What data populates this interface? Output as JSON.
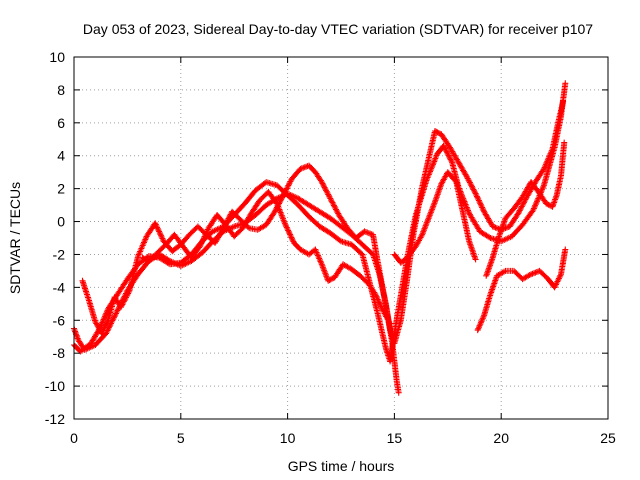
{
  "chart_data": {
    "type": "scatter",
    "title": "Day 053 of 2023, Sidereal Day-to-day VTEC variation (SDTVAR) for receiver p107",
    "xlabel": "GPS time / hours",
    "ylabel": "SDTVAR / TECUs",
    "xlim": [
      0,
      25
    ],
    "ylim": [
      -12,
      10
    ],
    "xticks": [
      0,
      5,
      10,
      15,
      20,
      25
    ],
    "yticks": [
      -12,
      -10,
      -8,
      -6,
      -4,
      -2,
      0,
      2,
      4,
      6,
      8,
      10
    ],
    "xtick_labels": [
      "0",
      "5",
      "10",
      "15",
      "20",
      "25"
    ],
    "ytick_labels": [
      "-12",
      "-10",
      "-8",
      "-6",
      "-4",
      "-2",
      "0",
      "2",
      "4",
      "6",
      "8",
      "10"
    ],
    "grid": true,
    "marker": "plus",
    "color": "#ff0000",
    "series": [
      {
        "points": [
          [
            0.0,
            -6.5
          ],
          [
            0.2,
            -7.2
          ],
          [
            0.5,
            -7.8
          ],
          [
            1.0,
            -7.5
          ],
          [
            1.5,
            -6.8
          ],
          [
            2.0,
            -5.5
          ],
          [
            2.5,
            -4.2
          ],
          [
            3.0,
            -3.2
          ],
          [
            3.5,
            -2.4
          ],
          [
            4.0,
            -2.0
          ],
          [
            4.5,
            -2.4
          ],
          [
            5.0,
            -2.7
          ],
          [
            5.5,
            -2.4
          ],
          [
            6.0,
            -1.9
          ],
          [
            6.5,
            -1.2
          ],
          [
            7.0,
            -0.6
          ],
          [
            7.5,
            -0.3
          ],
          [
            8.0,
            -0.1
          ],
          [
            8.5,
            0.4
          ],
          [
            9.0,
            1.0
          ],
          [
            9.5,
            1.4
          ],
          [
            10.0,
            1.7
          ],
          [
            10.5,
            1.4
          ],
          [
            11.0,
            1.0
          ],
          [
            11.5,
            0.6
          ],
          [
            12.0,
            0.2
          ],
          [
            12.5,
            -0.3
          ],
          [
            13.0,
            -0.8
          ],
          [
            13.5,
            -1.4
          ],
          [
            14.0,
            -2.0
          ],
          [
            14.3,
            -3.2
          ],
          [
            14.6,
            -5.0
          ],
          [
            14.9,
            -7.4
          ],
          [
            15.1,
            -9.6
          ],
          [
            15.2,
            -10.4
          ]
        ]
      },
      {
        "points": [
          [
            0.0,
            -7.5
          ],
          [
            0.3,
            -7.9
          ],
          [
            0.8,
            -7.4
          ],
          [
            1.2,
            -6.5
          ],
          [
            1.6,
            -5.3
          ],
          [
            2.0,
            -4.5
          ],
          [
            2.5,
            -3.5
          ],
          [
            3.0,
            -2.6
          ],
          [
            3.5,
            -2.1
          ],
          [
            4.0,
            -2.2
          ],
          [
            4.5,
            -2.6
          ],
          [
            5.0,
            -2.5
          ],
          [
            5.5,
            -2.0
          ],
          [
            6.0,
            -1.2
          ],
          [
            6.5,
            -0.6
          ],
          [
            7.0,
            -0.3
          ],
          [
            7.5,
            0.4
          ],
          [
            8.0,
            1.1
          ],
          [
            8.5,
            1.9
          ],
          [
            9.0,
            2.4
          ],
          [
            9.5,
            2.2
          ],
          [
            10.0,
            1.6
          ],
          [
            10.5,
            1.0
          ],
          [
            11.0,
            0.3
          ],
          [
            11.5,
            -0.3
          ],
          [
            12.0,
            -0.7
          ],
          [
            12.5,
            -1.2
          ],
          [
            13.0,
            -1.4
          ],
          [
            13.5,
            -2.0
          ],
          [
            13.8,
            -3.5
          ],
          [
            14.2,
            -5.5
          ],
          [
            14.6,
            -7.7
          ],
          [
            14.8,
            -8.5
          ],
          [
            15.1,
            -6.0
          ],
          [
            15.3,
            -4.5
          ],
          [
            15.6,
            -2.2
          ],
          [
            16.0,
            0.4
          ],
          [
            16.5,
            2.5
          ],
          [
            17.0,
            4.1
          ],
          [
            17.3,
            4.6
          ],
          [
            17.7,
            3.6
          ],
          [
            18.0,
            2.1
          ],
          [
            18.5,
            0.5
          ],
          [
            19.0,
            -0.6
          ],
          [
            19.5,
            -1.0
          ],
          [
            20.0,
            -1.2
          ],
          [
            20.5,
            -0.9
          ],
          [
            21.0,
            -0.2
          ],
          [
            21.5,
            0.7
          ],
          [
            22.0,
            2.2
          ],
          [
            22.5,
            4.5
          ],
          [
            22.8,
            6.4
          ],
          [
            23.0,
            8.4
          ]
        ]
      },
      {
        "points": [
          [
            0.4,
            -3.6
          ],
          [
            0.7,
            -4.8
          ],
          [
            1.0,
            -6.1
          ],
          [
            1.3,
            -6.8
          ],
          [
            1.6,
            -6.0
          ],
          [
            1.9,
            -4.6
          ],
          [
            2.2,
            -5.2
          ],
          [
            2.6,
            -4.2
          ],
          [
            3.0,
            -2.1
          ],
          [
            3.4,
            -0.9
          ],
          [
            3.8,
            -0.1
          ],
          [
            4.2,
            -1.2
          ],
          [
            4.6,
            -1.8
          ],
          [
            5.0,
            -1.4
          ],
          [
            5.4,
            -0.8
          ],
          [
            5.8,
            -0.3
          ],
          [
            6.2,
            -0.8
          ],
          [
            6.6,
            -1.3
          ],
          [
            7.0,
            -0.4
          ],
          [
            7.4,
            0.6
          ],
          [
            7.8,
            0.1
          ],
          [
            8.2,
            -0.4
          ],
          [
            8.6,
            -0.5
          ],
          [
            9.0,
            -0.2
          ],
          [
            9.4,
            0.6
          ],
          [
            9.8,
            1.6
          ],
          [
            10.2,
            2.6
          ],
          [
            10.6,
            3.2
          ],
          [
            11.0,
            3.4
          ],
          [
            11.3,
            3.0
          ],
          [
            11.6,
            2.4
          ],
          [
            12.0,
            1.4
          ],
          [
            12.4,
            0.4
          ],
          [
            12.8,
            -0.4
          ],
          [
            13.2,
            -1.0
          ],
          [
            13.6,
            -0.6
          ],
          [
            14.0,
            -0.8
          ],
          [
            14.2,
            -2.3
          ],
          [
            14.5,
            -4.4
          ],
          [
            14.8,
            -6.6
          ],
          [
            15.0,
            -7.4
          ],
          [
            15.3,
            -6.0
          ],
          [
            15.6,
            -3.5
          ],
          [
            15.9,
            -0.7
          ],
          [
            16.3,
            2.1
          ],
          [
            16.6,
            3.8
          ],
          [
            16.9,
            5.5
          ],
          [
            17.2,
            5.3
          ],
          [
            17.6,
            4.5
          ],
          [
            18.0,
            3.6
          ],
          [
            18.4,
            2.7
          ],
          [
            18.8,
            1.7
          ],
          [
            19.2,
            0.6
          ],
          [
            19.6,
            -0.3
          ],
          [
            20.0,
            -0.5
          ],
          [
            20.4,
            -0.3
          ],
          [
            20.8,
            0.5
          ],
          [
            21.2,
            1.5
          ],
          [
            21.6,
            2.4
          ],
          [
            22.0,
            3.2
          ],
          [
            22.4,
            4.4
          ],
          [
            22.7,
            6.2
          ],
          [
            22.9,
            7.3
          ]
        ]
      },
      {
        "points": [
          [
            3.2,
            -2.2
          ],
          [
            3.5,
            -2.4
          ],
          [
            3.9,
            -1.9
          ],
          [
            4.3,
            -1.4
          ],
          [
            4.7,
            -0.8
          ],
          [
            5.1,
            -1.5
          ],
          [
            5.5,
            -2.2
          ],
          [
            5.9,
            -1.5
          ],
          [
            6.3,
            -0.4
          ],
          [
            6.7,
            0.4
          ],
          [
            7.1,
            -0.2
          ],
          [
            7.5,
            -0.9
          ],
          [
            7.9,
            -0.4
          ],
          [
            8.3,
            0.5
          ],
          [
            8.7,
            1.3
          ],
          [
            9.1,
            1.8
          ],
          [
            9.5,
            1.1
          ],
          [
            9.9,
            -0.2
          ],
          [
            10.3,
            -1.3
          ],
          [
            10.6,
            -1.7
          ],
          [
            11.0,
            -2.0
          ],
          [
            11.3,
            -1.7
          ],
          [
            11.6,
            -2.6
          ],
          [
            11.9,
            -3.6
          ],
          [
            12.2,
            -3.4
          ],
          [
            12.6,
            -2.6
          ],
          [
            13.0,
            -2.9
          ],
          [
            13.4,
            -3.3
          ],
          [
            13.8,
            -3.8
          ],
          [
            14.1,
            -4.4
          ],
          [
            14.5,
            -5.5
          ],
          [
            14.8,
            -6.2
          ]
        ]
      },
      {
        "points": [
          [
            15.0,
            -2.0
          ],
          [
            15.3,
            -2.5
          ],
          [
            15.6,
            -2.2
          ],
          [
            16.0,
            -1.5
          ],
          [
            16.3,
            -0.8
          ],
          [
            16.6,
            0.2
          ],
          [
            16.9,
            1.2
          ],
          [
            17.2,
            2.3
          ],
          [
            17.5,
            3.0
          ],
          [
            17.9,
            2.4
          ],
          [
            18.2,
            0.6
          ],
          [
            18.5,
            -1.2
          ],
          [
            18.8,
            -2.3
          ]
        ]
      },
      {
        "points": [
          [
            18.9,
            -6.6
          ],
          [
            19.2,
            -5.7
          ],
          [
            19.5,
            -4.4
          ],
          [
            19.8,
            -3.3
          ],
          [
            20.2,
            -3.0
          ],
          [
            20.6,
            -3.0
          ],
          [
            21.0,
            -3.5
          ],
          [
            21.4,
            -3.2
          ],
          [
            21.8,
            -3.0
          ],
          [
            22.2,
            -3.5
          ],
          [
            22.5,
            -4.0
          ],
          [
            22.8,
            -3.2
          ],
          [
            23.0,
            -1.7
          ]
        ]
      },
      {
        "points": [
          [
            19.3,
            -3.3
          ],
          [
            19.6,
            -2.2
          ],
          [
            19.9,
            -0.9
          ],
          [
            20.2,
            0.2
          ],
          [
            20.6,
            0.8
          ],
          [
            21.0,
            1.5
          ],
          [
            21.4,
            2.4
          ],
          [
            21.8,
            1.7
          ],
          [
            22.1,
            1.1
          ],
          [
            22.4,
            0.9
          ],
          [
            22.6,
            1.6
          ],
          [
            22.8,
            2.8
          ],
          [
            22.95,
            4.8
          ]
        ]
      }
    ]
  }
}
